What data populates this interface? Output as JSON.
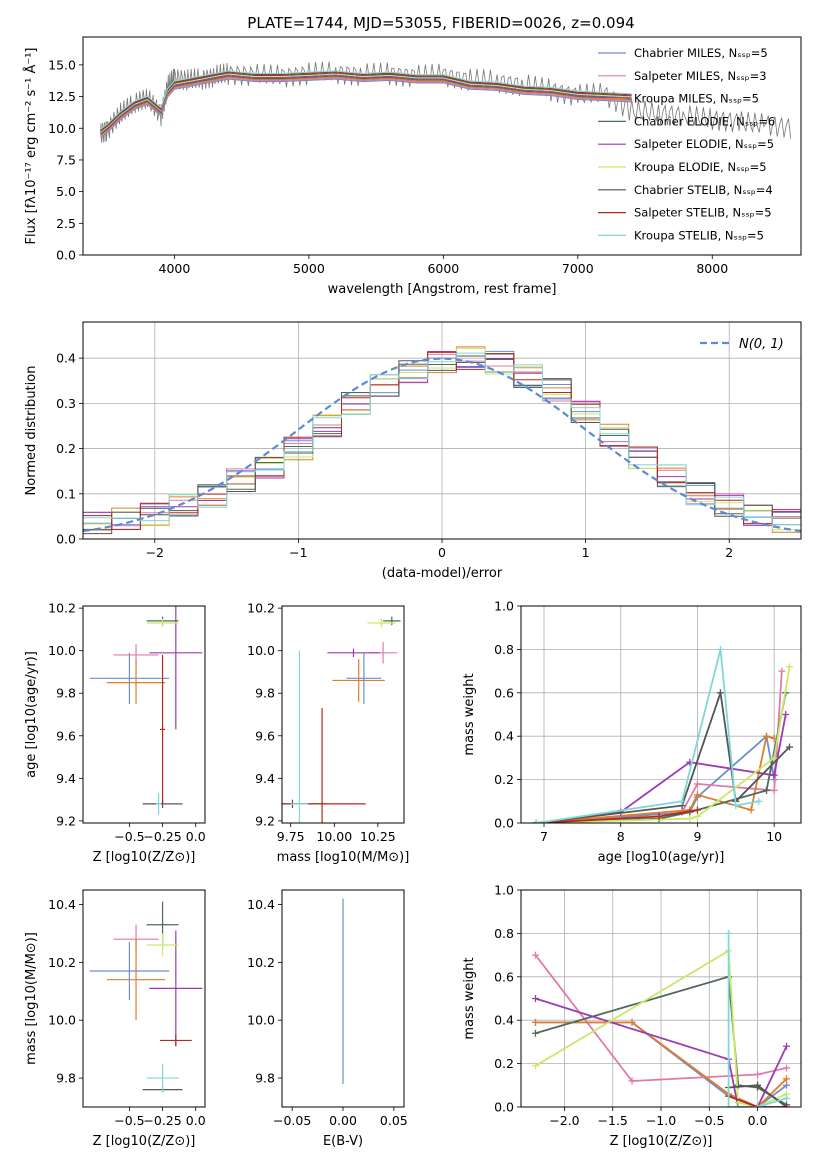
{
  "title": "PLATE=1744, MJD=53055, FIBERID=0026, z=0.094",
  "colors": [
    "#6c8ecf",
    "#e27aa9",
    "#e07d2b",
    "#4f6b57",
    "#9b3bb5",
    "#c8e96a",
    "#555555",
    "#b5281e",
    "#80d7d8"
  ],
  "chart_data": [
    {
      "id": "spectrum",
      "type": "line",
      "xlabel": "wavelength [Angstrom, rest frame]",
      "ylabel": "Flux [fλ10⁻¹⁷ erg cm⁻² s⁻¹ Å⁻¹]",
      "xlim": [
        3320,
        8660
      ],
      "ylim": [
        0,
        17.2
      ],
      "xticks": [
        "4000",
        "5000",
        "6000",
        "7000",
        "8000"
      ],
      "yticks": [
        "0.0",
        "2.5",
        "5.0",
        "7.5",
        "10.0",
        "12.5",
        "15.0"
      ],
      "data_line": {
        "name": "data",
        "x": [
          3450,
          3500,
          3600,
          3700,
          3800,
          3900,
          3950,
          4000,
          4100,
          4200,
          4300,
          4400,
          4600,
          4800,
          5000,
          5200,
          5400,
          5600,
          5800,
          6000,
          6200,
          6400,
          6600,
          6800,
          7000,
          7200,
          7400,
          7600,
          7800,
          8000,
          8200,
          8400,
          8600
        ],
        "y": [
          9.6,
          9.8,
          11.2,
          12.0,
          12.4,
          11.0,
          13.3,
          14.0,
          13.8,
          13.9,
          14.1,
          14.3,
          14.2,
          14.1,
          14.3,
          14.4,
          14.2,
          14.3,
          14.1,
          14.2,
          13.8,
          13.7,
          13.4,
          13.0,
          12.6,
          12.7,
          11.4,
          11.2,
          11.0,
          10.7,
          10.5,
          10.3,
          10.0
        ]
      },
      "model_line": {
        "x": [
          3450,
          3500,
          3600,
          3700,
          3800,
          3900,
          3950,
          4000,
          4100,
          4200,
          4300,
          4400,
          4600,
          4800,
          5000,
          5200,
          5400,
          5600,
          5800,
          6000,
          6200,
          6400,
          6600,
          6800,
          7000,
          7200,
          7400
        ],
        "y": [
          9.6,
          10.0,
          11.0,
          11.8,
          12.2,
          11.3,
          12.8,
          13.4,
          13.6,
          13.8,
          14.0,
          14.2,
          14.0,
          14.0,
          14.1,
          14.2,
          14.0,
          14.1,
          13.9,
          13.9,
          13.4,
          13.3,
          13.0,
          12.9,
          12.6,
          12.5,
          12.4
        ]
      },
      "legend": [
        "Chabrier MILES, N_SSP=5",
        "Salpeter MILES, N_SSP=3",
        "Kroupa MILES, N_SSP=5",
        "Chabrier ELODIE, N_SSP=6",
        "Salpeter ELODIE, N_SSP=5",
        "Kroupa ELODIE, N_SSP=5",
        "Chabrier STELIB, N_SSP=4",
        "Salpeter STELIB, N_SSP=5",
        "Kroupa STELIB, N_SSP=5"
      ],
      "legend_position": "top-right"
    },
    {
      "id": "residuals",
      "type": "line",
      "xlabel": "(data-model)/error",
      "ylabel": "Normed distribution",
      "xlim": [
        -2.5,
        2.5
      ],
      "ylim": [
        0,
        0.48
      ],
      "grid": true,
      "xticks": [
        "−2",
        "−1",
        "0",
        "1",
        "2"
      ],
      "yticks": [
        "0.0",
        "0.1",
        "0.2",
        "0.3",
        "0.4"
      ],
      "gaussian_label": "N(0, 1)",
      "hist_x": [
        -2.5,
        -2.3,
        -2.1,
        -1.9,
        -1.7,
        -1.5,
        -1.3,
        -1.1,
        -0.9,
        -0.7,
        -0.5,
        -0.3,
        -0.1,
        0.1,
        0.3,
        0.5,
        0.7,
        0.9,
        1.1,
        1.3,
        1.5,
        1.7,
        1.9,
        2.1,
        2.3,
        2.5
      ],
      "hist_y": [
        0.035,
        0.045,
        0.055,
        0.075,
        0.095,
        0.13,
        0.16,
        0.2,
        0.25,
        0.3,
        0.34,
        0.37,
        0.39,
        0.4,
        0.39,
        0.36,
        0.33,
        0.28,
        0.23,
        0.18,
        0.14,
        0.1,
        0.075,
        0.055,
        0.04,
        0.03
      ]
    },
    {
      "id": "age-vs-Z",
      "type": "scatter",
      "xlabel": "Z [log10(Z/Z⊙)]",
      "ylabel": "age  [log10(age/yr)]",
      "xlim": [
        -0.85,
        0.07
      ],
      "ylim": [
        9.19,
        10.21
      ],
      "xticks": [
        "−0.5",
        "−0.25",
        "0.0"
      ],
      "yticks": [
        "9.2",
        "9.4",
        "9.6",
        "9.8",
        "10.0",
        "10.2"
      ],
      "points": [
        {
          "series": "Chabrier MILES",
          "x": -0.5,
          "y": 9.87,
          "xerr": 0.3,
          "yerr": 0.12
        },
        {
          "series": "Salpeter MILES",
          "x": -0.45,
          "y": 9.98,
          "xerr": 0.17,
          "yerr": 0.05
        },
        {
          "series": "Kroupa MILES",
          "x": -0.45,
          "y": 9.85,
          "xerr": 0.22,
          "yerr": 0.1
        },
        {
          "series": "Chabrier ELODIE",
          "x": -0.25,
          "y": 10.14,
          "xerr": 0.12,
          "yerr": 0.02
        },
        {
          "series": "Salpeter ELODIE",
          "x": -0.15,
          "y": 9.99,
          "xerr": 0.2,
          "yerr": 0.36
        },
        {
          "series": "Kroupa ELODIE",
          "x": -0.25,
          "y": 10.13,
          "xerr": 0.12,
          "yerr": 0.02
        },
        {
          "series": "Chabrier STELIB",
          "x": -0.25,
          "y": 9.28,
          "xerr": 0.15,
          "yerr": 0.02
        },
        {
          "series": "Salpeter STELIB",
          "x": -0.25,
          "y": 9.63,
          "xerr": 0.02,
          "yerr": 0.35
        },
        {
          "series": "Kroupa STELIB",
          "x": -0.28,
          "y": 9.28,
          "xerr": 0.02,
          "yerr": 0.05
        }
      ]
    },
    {
      "id": "age-vs-mass",
      "type": "scatter",
      "xlabel": "mass [log10(M/M⊙)]",
      "ylabel": "",
      "xlim": [
        9.7,
        10.4
      ],
      "ylim": [
        9.19,
        10.21
      ],
      "xticks": [
        "9.75",
        "10.00",
        "10.25"
      ],
      "yticks": [
        "9.2",
        "9.4",
        "9.6",
        "9.8",
        "10.0",
        "10.2"
      ],
      "points": [
        {
          "series": "Chabrier MILES",
          "x": 10.17,
          "y": 9.87,
          "xerr": 0.1,
          "yerr": 0.12
        },
        {
          "series": "Salpeter MILES",
          "x": 10.28,
          "y": 9.99,
          "xerr": 0.08,
          "yerr": 0.05
        },
        {
          "series": "Kroupa MILES",
          "x": 10.14,
          "y": 9.86,
          "xerr": 0.15,
          "yerr": 0.1
        },
        {
          "series": "Chabrier ELODIE",
          "x": 10.33,
          "y": 10.14,
          "xerr": 0.05,
          "yerr": 0.02
        },
        {
          "series": "Salpeter ELODIE",
          "x": 10.11,
          "y": 9.99,
          "xerr": 0.15,
          "yerr": 0.02
        },
        {
          "series": "Kroupa ELODIE",
          "x": 10.27,
          "y": 10.13,
          "xerr": 0.08,
          "yerr": 0.02
        },
        {
          "series": "Chabrier STELIB",
          "x": 9.76,
          "y": 9.28,
          "xerr": 0.2,
          "yerr": 0.02
        },
        {
          "series": "Salpeter STELIB",
          "x": 9.93,
          "y": 9.28,
          "xerr": 0.25,
          "yerr": 0.45
        },
        {
          "series": "Kroupa STELIB",
          "x": 9.8,
          "y": 9.28,
          "xerr": 0.05,
          "yerr": 0.72
        }
      ]
    },
    {
      "id": "massweight-vs-age",
      "type": "line",
      "xlabel": "age  [log10(age/yr)]",
      "ylabel": "mass weight",
      "xlim": [
        6.7,
        10.35
      ],
      "ylim": [
        0,
        1.0
      ],
      "grid": true,
      "xticks": [
        "7",
        "8",
        "9",
        "10"
      ],
      "yticks": [
        "0.0",
        "0.2",
        "0.4",
        "0.6",
        "0.8",
        "1.0"
      ],
      "series": [
        {
          "name": "Chabrier MILES",
          "x": [
            6.9,
            8.9,
            9.0,
            9.9,
            10.0
          ],
          "y": [
            0.0,
            0.05,
            0.12,
            0.4,
            0.2
          ]
        },
        {
          "name": "Salpeter MILES",
          "x": [
            8.8,
            9.0,
            10.0,
            10.1
          ],
          "y": [
            0.05,
            0.18,
            0.15,
            0.7
          ]
        },
        {
          "name": "Kroupa MILES",
          "x": [
            6.9,
            8.9,
            9.0,
            9.7,
            9.9,
            10.0
          ],
          "y": [
            0.0,
            0.06,
            0.13,
            0.06,
            0.4,
            0.39
          ]
        },
        {
          "name": "Chabrier ELODIE",
          "x": [
            6.9,
            8.5,
            8.9,
            9.9,
            10.15
          ],
          "y": [
            0.0,
            0.02,
            0.05,
            0.15,
            0.6
          ]
        },
        {
          "name": "Salpeter ELODIE",
          "x": [
            6.9,
            8.0,
            8.9,
            10.0,
            10.15
          ],
          "y": [
            0.0,
            0.05,
            0.28,
            0.22,
            0.5
          ]
        },
        {
          "name": "Kroupa ELODIE",
          "x": [
            6.9,
            8.9,
            9.0,
            10.0,
            10.2
          ],
          "y": [
            0.0,
            0.02,
            0.03,
            0.3,
            0.72
          ]
        },
        {
          "name": "Chabrier STELIB",
          "x": [
            6.9,
            8.8,
            9.3,
            9.5,
            10.2
          ],
          "y": [
            0.0,
            0.08,
            0.6,
            0.1,
            0.35
          ]
        },
        {
          "name": "Salpeter STELIB",
          "x": [
            6.9,
            8.5,
            9.0
          ],
          "y": [
            0.0,
            0.03,
            0.06
          ]
        },
        {
          "name": "Kroupa STELIB",
          "x": [
            6.9,
            8.8,
            9.3,
            9.5,
            9.8
          ],
          "y": [
            0.0,
            0.1,
            0.8,
            0.08,
            0.1
          ]
        }
      ]
    },
    {
      "id": "mass-vs-Z",
      "type": "scatter",
      "xlabel": "Z [log10(Z/Z⊙)]",
      "ylabel": "mass [log10(M/M⊙)]",
      "xlim": [
        -0.85,
        0.07
      ],
      "ylim": [
        9.7,
        10.45
      ],
      "xticks": [
        "−0.5",
        "−0.25",
        "0.0"
      ],
      "yticks": [
        "9.8",
        "10.0",
        "10.2",
        "10.4"
      ],
      "points": [
        {
          "series": "Chabrier MILES",
          "x": -0.5,
          "y": 10.17,
          "xerr": 0.3,
          "yerr": 0.1
        },
        {
          "series": "Salpeter MILES",
          "x": -0.45,
          "y": 10.28,
          "xerr": 0.17,
          "yerr": 0.05
        },
        {
          "series": "Kroupa MILES",
          "x": -0.45,
          "y": 10.14,
          "xerr": 0.22,
          "yerr": 0.14
        },
        {
          "series": "Chabrier ELODIE",
          "x": -0.25,
          "y": 10.33,
          "xerr": 0.12,
          "yerr": 0.08
        },
        {
          "series": "Salpeter ELODIE",
          "x": -0.15,
          "y": 10.11,
          "xerr": 0.2,
          "yerr": 0.2
        },
        {
          "series": "Kroupa ELODIE",
          "x": -0.25,
          "y": 10.26,
          "xerr": 0.12,
          "yerr": 0.04
        },
        {
          "series": "Chabrier STELIB",
          "x": -0.25,
          "y": 9.76,
          "xerr": 0.15,
          "yerr": 0.01
        },
        {
          "series": "Salpeter STELIB",
          "x": -0.15,
          "y": 9.93,
          "xerr": 0.12,
          "yerr": 0.02
        },
        {
          "series": "Kroupa STELIB",
          "x": -0.25,
          "y": 9.8,
          "xerr": 0.12,
          "yerr": 0.05
        }
      ]
    },
    {
      "id": "mass-vs-EBV",
      "type": "scatter",
      "xlabel": "E(B-V)",
      "ylabel": "",
      "xlim": [
        -0.06,
        0.06
      ],
      "ylim": [
        9.7,
        10.45
      ],
      "xticks": [
        "−0.05",
        "0.00",
        "0.05"
      ],
      "yticks": [
        "9.8",
        "10.0",
        "10.2",
        "10.4"
      ],
      "points": [
        {
          "series": "all",
          "x": 0.0,
          "y": 10.1,
          "xerr": 0.0,
          "yerr": 0.32
        }
      ]
    },
    {
      "id": "massweight-vs-Z",
      "type": "line",
      "xlabel": "Z [log10(Z/Z⊙)]",
      "ylabel": "mass weight",
      "xlim": [
        -2.45,
        0.45
      ],
      "ylim": [
        0,
        1.0
      ],
      "grid": true,
      "xticks": [
        "−2.0",
        "−1.5",
        "−1.0",
        "−0.5",
        "0.0"
      ],
      "yticks": [
        "0.0",
        "0.2",
        "0.4",
        "0.6",
        "0.8",
        "1.0"
      ],
      "series": [
        {
          "name": "Chabrier MILES",
          "x": [
            -2.3,
            -1.3,
            -0.3,
            0.0,
            0.3
          ],
          "y": [
            0.39,
            0.39,
            0.05,
            0.0,
            0.1
          ]
        },
        {
          "name": "Salpeter MILES",
          "x": [
            -2.3,
            -1.3,
            0.0,
            0.3
          ],
          "y": [
            0.7,
            0.12,
            0.15,
            0.18
          ]
        },
        {
          "name": "Kroupa MILES",
          "x": [
            -2.3,
            -1.3,
            -0.3,
            0.0,
            0.3
          ],
          "y": [
            0.39,
            0.39,
            0.06,
            0.0,
            0.13
          ]
        },
        {
          "name": "Chabrier ELODIE",
          "x": [
            -2.3,
            -0.3,
            -0.2,
            0.0,
            0.3
          ],
          "y": [
            0.34,
            0.6,
            0.1,
            0.09,
            0.01
          ]
        },
        {
          "name": "Salpeter ELODIE",
          "x": [
            -2.3,
            -0.3,
            -0.2,
            0.0,
            0.3
          ],
          "y": [
            0.5,
            0.22,
            0.0,
            0.0,
            0.28
          ]
        },
        {
          "name": "Kroupa ELODIE",
          "x": [
            -2.3,
            -0.3,
            -0.2,
            0.0,
            0.3
          ],
          "y": [
            0.19,
            0.72,
            0.02,
            0.0,
            0.06
          ]
        },
        {
          "name": "Chabrier STELIB",
          "x": [
            -0.3,
            0.0,
            0.3
          ],
          "y": [
            0.09,
            0.1,
            0.0
          ]
        },
        {
          "name": "Salpeter STELIB",
          "x": [
            -0.3,
            0.0,
            0.3
          ],
          "y": [
            0.05,
            0.0,
            0.0
          ]
        },
        {
          "name": "Kroupa STELIB",
          "x": [
            -0.3,
            -0.3,
            0.0,
            0.3
          ],
          "y": [
            0.8,
            0.0,
            0.0,
            0.04
          ]
        }
      ]
    }
  ]
}
